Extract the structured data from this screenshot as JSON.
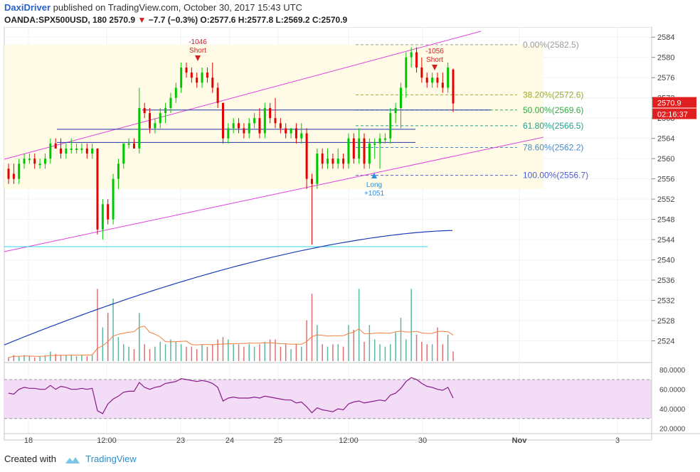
{
  "header": {
    "author": "DaxiDriver",
    "published_text": "published on TradingView.com, October 30, 2017 15:43 UTC",
    "symbol": "OANDA:SPX500USD, 180",
    "last": "2570.9",
    "change_arrow": "▼",
    "change": "−7.7 (−0.3%)",
    "ohlc": "O:2577.6 H:2577.8 L:2569.2 C:2570.9"
  },
  "footer": {
    "created_with": "Created with",
    "brand": "TradingView"
  },
  "colors": {
    "up": "#00c800",
    "down": "#e00000",
    "fib_band": "#fffbe6",
    "channel": "#e040e0",
    "ma_blue": "#1a3fb8",
    "vol_ma": "#f08040",
    "rsi": "#8a1a8a",
    "rsi_band": "#f2dcf6",
    "level_blue": "#2233aa",
    "cyan_line": "#33d6e6"
  },
  "chart_data": {
    "type": "candlestick",
    "title": "OANDA:SPX500USD, 180",
    "ylim": [
      2520,
      2586
    ],
    "price_ticks": [
      2524,
      2528,
      2532,
      2536,
      2540,
      2544,
      2548,
      2552,
      2556,
      2560,
      2564,
      2568,
      2572,
      2576,
      2580,
      2584
    ],
    "x_ticks": [
      "18",
      "12:00",
      "23",
      "24",
      "25",
      "12:00",
      "30",
      "Nov",
      "3"
    ],
    "last_price_label": "2570.9",
    "countdown_label": "02:16:37",
    "bars": [
      {
        "o": 2558,
        "h": 2559,
        "l": 2555,
        "c": 2556
      },
      {
        "o": 2557,
        "h": 2559,
        "l": 2555,
        "c": 2556
      },
      {
        "o": 2556,
        "h": 2560,
        "l": 2555,
        "c": 2559
      },
      {
        "o": 2559,
        "h": 2561,
        "l": 2558,
        "c": 2560
      },
      {
        "o": 2560,
        "h": 2561,
        "l": 2559,
        "c": 2560
      },
      {
        "o": 2560,
        "h": 2561,
        "l": 2558,
        "c": 2559
      },
      {
        "o": 2559,
        "h": 2560,
        "l": 2558,
        "c": 2559
      },
      {
        "o": 2559,
        "h": 2561,
        "l": 2558,
        "c": 2560
      },
      {
        "o": 2560,
        "h": 2564,
        "l": 2559,
        "c": 2563
      },
      {
        "o": 2563,
        "h": 2564,
        "l": 2562,
        "c": 2562
      },
      {
        "o": 2562,
        "h": 2564,
        "l": 2560,
        "c": 2561
      },
      {
        "o": 2561,
        "h": 2563,
        "l": 2560,
        "c": 2562
      },
      {
        "o": 2562,
        "h": 2564,
        "l": 2561,
        "c": 2562
      },
      {
        "o": 2562,
        "h": 2563,
        "l": 2561,
        "c": 2562
      },
      {
        "o": 2562,
        "h": 2563,
        "l": 2561,
        "c": 2562
      },
      {
        "o": 2562,
        "h": 2563,
        "l": 2560,
        "c": 2561
      },
      {
        "o": 2561,
        "h": 2563,
        "l": 2560,
        "c": 2562
      },
      {
        "o": 2562,
        "h": 2562,
        "l": 2545,
        "c": 2546
      },
      {
        "o": 2546,
        "h": 2552,
        "l": 2544,
        "c": 2551
      },
      {
        "o": 2551,
        "h": 2552,
        "l": 2547,
        "c": 2548
      },
      {
        "o": 2548,
        "h": 2557,
        "l": 2547,
        "c": 2556
      },
      {
        "o": 2556,
        "h": 2560,
        "l": 2554,
        "c": 2559
      },
      {
        "o": 2559,
        "h": 2563,
        "l": 2558,
        "c": 2563
      },
      {
        "o": 2563,
        "h": 2564,
        "l": 2562,
        "c": 2563
      },
      {
        "o": 2563,
        "h": 2564,
        "l": 2562,
        "c": 2562
      },
      {
        "o": 2562,
        "h": 2574,
        "l": 2561,
        "c": 2570
      },
      {
        "o": 2570,
        "h": 2571,
        "l": 2568,
        "c": 2569
      },
      {
        "o": 2569,
        "h": 2570,
        "l": 2565,
        "c": 2566
      },
      {
        "o": 2566,
        "h": 2568,
        "l": 2565,
        "c": 2567
      },
      {
        "o": 2567,
        "h": 2570,
        "l": 2566,
        "c": 2569
      },
      {
        "o": 2569,
        "h": 2571,
        "l": 2567,
        "c": 2570
      },
      {
        "o": 2570,
        "h": 2573,
        "l": 2569,
        "c": 2572
      },
      {
        "o": 2572,
        "h": 2575,
        "l": 2571,
        "c": 2574
      },
      {
        "o": 2574,
        "h": 2579,
        "l": 2573,
        "c": 2578
      },
      {
        "o": 2578,
        "h": 2579,
        "l": 2576,
        "c": 2577
      },
      {
        "o": 2577,
        "h": 2578,
        "l": 2575,
        "c": 2576
      },
      {
        "o": 2576,
        "h": 2577,
        "l": 2574,
        "c": 2575
      },
      {
        "o": 2575,
        "h": 2578,
        "l": 2574,
        "c": 2577
      },
      {
        "o": 2577,
        "h": 2578,
        "l": 2575,
        "c": 2576
      },
      {
        "o": 2576,
        "h": 2579,
        "l": 2573,
        "c": 2574
      },
      {
        "o": 2574,
        "h": 2575,
        "l": 2570,
        "c": 2571
      },
      {
        "o": 2571,
        "h": 2571,
        "l": 2563,
        "c": 2564
      },
      {
        "o": 2564,
        "h": 2567,
        "l": 2563,
        "c": 2566
      },
      {
        "o": 2566,
        "h": 2568,
        "l": 2565,
        "c": 2567
      },
      {
        "o": 2567,
        "h": 2568,
        "l": 2565,
        "c": 2566
      },
      {
        "o": 2566,
        "h": 2567,
        "l": 2564,
        "c": 2565
      },
      {
        "o": 2565,
        "h": 2568,
        "l": 2564,
        "c": 2567
      },
      {
        "o": 2567,
        "h": 2569,
        "l": 2566,
        "c": 2568
      },
      {
        "o": 2568,
        "h": 2570,
        "l": 2564,
        "c": 2565
      },
      {
        "o": 2565,
        "h": 2571,
        "l": 2564,
        "c": 2570
      },
      {
        "o": 2570,
        "h": 2571,
        "l": 2567,
        "c": 2568
      },
      {
        "o": 2568,
        "h": 2572,
        "l": 2566,
        "c": 2567
      },
      {
        "o": 2567,
        "h": 2568,
        "l": 2565,
        "c": 2566
      },
      {
        "o": 2566,
        "h": 2567,
        "l": 2564,
        "c": 2565
      },
      {
        "o": 2565,
        "h": 2566,
        "l": 2564,
        "c": 2566
      },
      {
        "o": 2566,
        "h": 2567,
        "l": 2563,
        "c": 2564
      },
      {
        "o": 2564,
        "h": 2567,
        "l": 2563,
        "c": 2565
      },
      {
        "o": 2565,
        "h": 2566,
        "l": 2554,
        "c": 2556
      },
      {
        "o": 2556,
        "h": 2557,
        "l": 2543,
        "c": 2555
      },
      {
        "o": 2555,
        "h": 2562,
        "l": 2554,
        "c": 2561
      },
      {
        "o": 2561,
        "h": 2562,
        "l": 2558,
        "c": 2559
      },
      {
        "o": 2559,
        "h": 2562,
        "l": 2558,
        "c": 2560
      },
      {
        "o": 2560,
        "h": 2561,
        "l": 2558,
        "c": 2559
      },
      {
        "o": 2559,
        "h": 2562,
        "l": 2558,
        "c": 2560
      },
      {
        "o": 2560,
        "h": 2561,
        "l": 2558,
        "c": 2559
      },
      {
        "o": 2559,
        "h": 2565,
        "l": 2558,
        "c": 2564
      },
      {
        "o": 2564,
        "h": 2565,
        "l": 2559,
        "c": 2560
      },
      {
        "o": 2560,
        "h": 2566,
        "l": 2559,
        "c": 2564
      },
      {
        "o": 2564,
        "h": 2565,
        "l": 2558,
        "c": 2559
      },
      {
        "o": 2559,
        "h": 2564,
        "l": 2558,
        "c": 2563
      },
      {
        "o": 2563,
        "h": 2564,
        "l": 2560,
        "c": 2563
      },
      {
        "o": 2563,
        "h": 2565,
        "l": 2558,
        "c": 2564
      },
      {
        "o": 2564,
        "h": 2565,
        "l": 2563,
        "c": 2564
      },
      {
        "o": 2564,
        "h": 2570,
        "l": 2563,
        "c": 2569
      },
      {
        "o": 2569,
        "h": 2571,
        "l": 2567,
        "c": 2570
      },
      {
        "o": 2570,
        "h": 2575,
        "l": 2566,
        "c": 2574
      },
      {
        "o": 2574,
        "h": 2581,
        "l": 2572,
        "c": 2580
      },
      {
        "o": 2580,
        "h": 2582,
        "l": 2578,
        "c": 2581
      },
      {
        "o": 2581,
        "h": 2582,
        "l": 2577,
        "c": 2578
      },
      {
        "o": 2578,
        "h": 2580,
        "l": 2575,
        "c": 2576
      },
      {
        "o": 2576,
        "h": 2577,
        "l": 2574,
        "c": 2575
      },
      {
        "o": 2575,
        "h": 2577,
        "l": 2574,
        "c": 2576
      },
      {
        "o": 2576,
        "h": 2577,
        "l": 2574,
        "c": 2575
      },
      {
        "o": 2575,
        "h": 2577,
        "l": 2573,
        "c": 2574
      },
      {
        "o": 2574,
        "h": 2579,
        "l": 2573,
        "c": 2578
      },
      {
        "o": 2577.6,
        "h": 2577.8,
        "l": 2569.2,
        "c": 2570.9
      }
    ],
    "fib_levels": [
      {
        "label": "0.00%(2582.5)",
        "price": 2582.5,
        "color": "#9a9a9a"
      },
      {
        "label": "38.20%(2572.6)",
        "price": 2572.6,
        "color": "#9aaa30"
      },
      {
        "label": "50.00%(2569.6)",
        "price": 2569.6,
        "color": "#33aa44"
      },
      {
        "label": "61.80%(2566.5)",
        "price": 2566.5,
        "color": "#22a088"
      },
      {
        "label": "78.60%(2562.2)",
        "price": 2562.2,
        "color": "#4a8ac8"
      },
      {
        "label": "100.00%(2556.7)",
        "price": 2556.7,
        "color": "#4a5fd8"
      }
    ],
    "horizontal_levels": [
      2569.6,
      2565.8,
      2563.2
    ],
    "markers": [
      {
        "kind": "short",
        "label": "-1046",
        "sub": "Short"
      },
      {
        "kind": "short",
        "label": "-1056",
        "sub": "Short"
      },
      {
        "kind": "long",
        "label": "+1051",
        "sub": "Long"
      }
    ],
    "rsi": {
      "ticks": [
        "80.0000",
        "60.0000",
        "40.0000",
        "20.0000"
      ],
      "ylim": [
        16,
        86
      ],
      "upper": 70,
      "lower": 30,
      "values": [
        56,
        55,
        60,
        62,
        61,
        61,
        60,
        60,
        64,
        60,
        63,
        62,
        60,
        60,
        61,
        60,
        61,
        38,
        35,
        45,
        50,
        53,
        57,
        58,
        58,
        67,
        62,
        60,
        62,
        63,
        66,
        67,
        68,
        71,
        70,
        69,
        68,
        69,
        68,
        66,
        62,
        48,
        51,
        52,
        51,
        51,
        51,
        52,
        51,
        53,
        52,
        51,
        50,
        49,
        49,
        46,
        47,
        42,
        36,
        41,
        39,
        38,
        37,
        40,
        39,
        45,
        47,
        48,
        46,
        47,
        48,
        49,
        48,
        54,
        56,
        61,
        68,
        72,
        70,
        66,
        63,
        62,
        60,
        59,
        62,
        51
      ]
    },
    "volume": {
      "values": [
        3,
        5,
        4,
        5,
        4,
        3,
        4,
        5,
        8,
        6,
        5,
        5,
        5,
        4,
        5,
        4,
        5,
        60,
        28,
        40,
        52,
        20,
        14,
        12,
        10,
        40,
        14,
        10,
        12,
        16,
        14,
        18,
        16,
        14,
        12,
        12,
        10,
        14,
        12,
        14,
        18,
        20,
        18,
        14,
        14,
        12,
        14,
        12,
        14,
        16,
        18,
        18,
        12,
        14,
        10,
        14,
        12,
        34,
        56,
        30,
        14,
        12,
        14,
        14,
        12,
        30,
        26,
        60,
        16,
        30,
        18,
        14,
        12,
        14,
        24,
        36,
        18,
        60,
        22,
        16,
        14,
        14,
        28,
        14,
        22,
        8
      ]
    }
  }
}
